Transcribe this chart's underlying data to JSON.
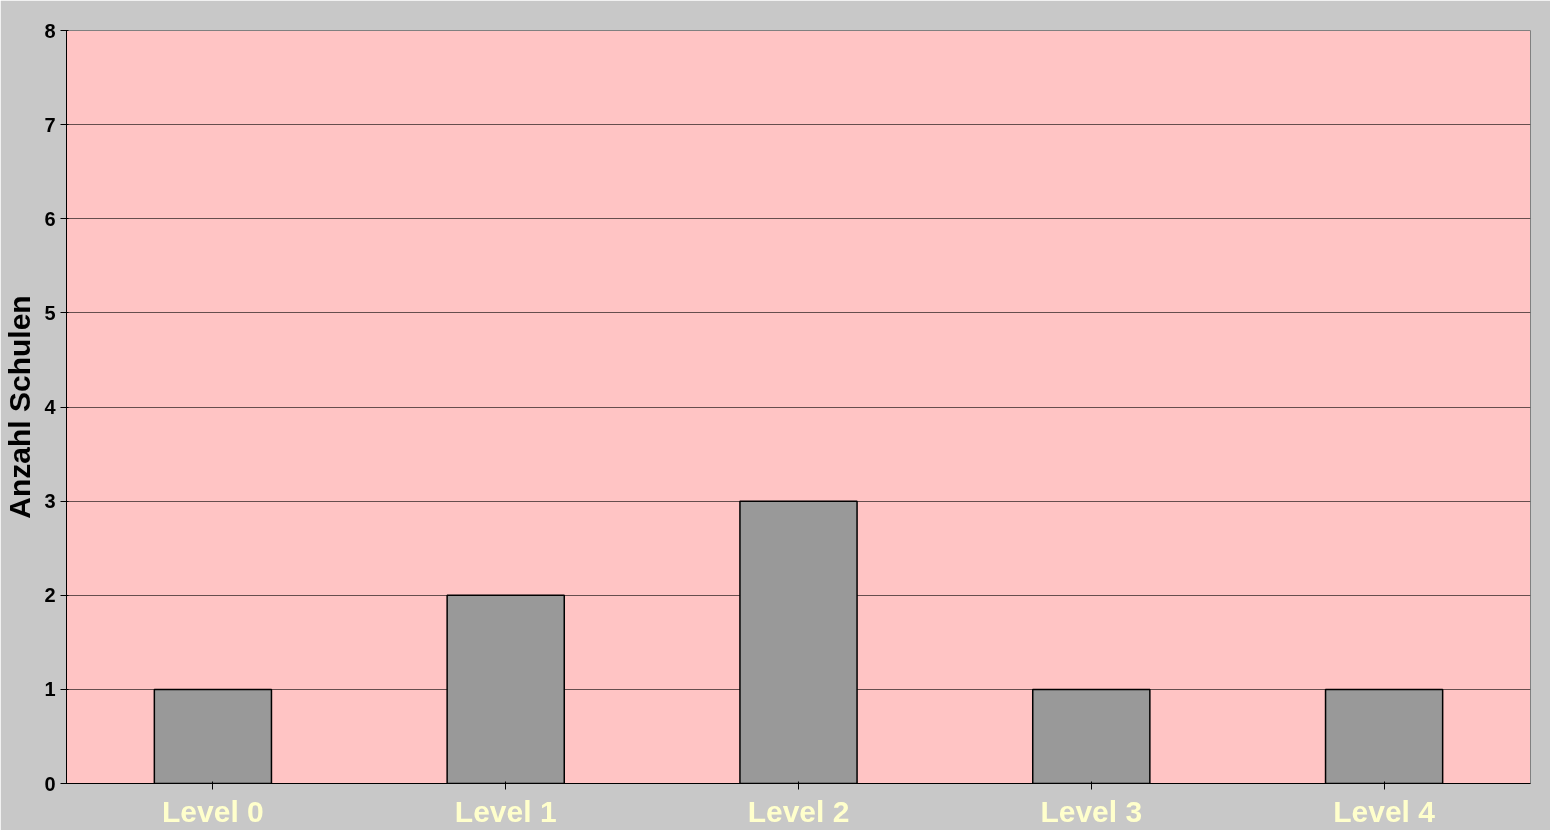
{
  "chart_data": {
    "type": "bar",
    "ylabel": "Anzahl Schulen",
    "categories": [
      "Level 0",
      "Level 1",
      "Level 2",
      "Level 3",
      "Level 4"
    ],
    "values": [
      1,
      2,
      3,
      1,
      1
    ],
    "color": "#999999",
    "ylim": [
      0,
      8
    ],
    "yticks": [
      0,
      1,
      2,
      3,
      4,
      5,
      6,
      7,
      8
    ],
    "grid": "y"
  }
}
